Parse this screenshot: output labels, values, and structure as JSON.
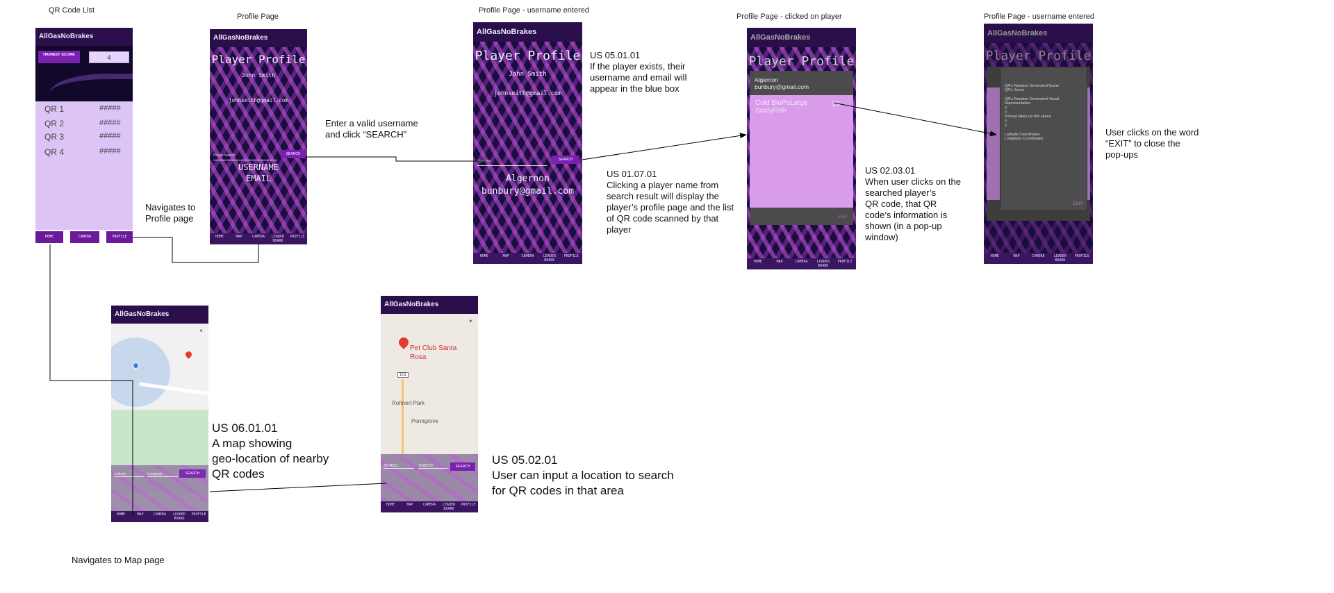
{
  "captions": {
    "qr_list": "QR Code List",
    "profile": "Profile Page",
    "profile_username": "Profile Page - username entered",
    "profile_clicked": "Profile Page - clicked on player",
    "profile_username2": "Profile Page - username entered"
  },
  "app_title": "AllGasNoBrakes",
  "nav": [
    "HOME",
    "MAP",
    "CAMERA",
    "LEADER BOARD",
    "PROFILE"
  ],
  "qr_screen": {
    "highest_score_label": "HIGHEST SCORE",
    "highest_score_value": "4",
    "rows": [
      {
        "name": "QR 1",
        "score": "#####"
      },
      {
        "name": "QR 2",
        "score": "#####"
      },
      {
        "name": "QR 3",
        "score": "#####"
      },
      {
        "name": "QR 4",
        "score": "#####"
      }
    ],
    "buttons": [
      "HOME",
      "CAMERA",
      "PROFILE"
    ]
  },
  "profile_screen": {
    "title": "Player Profile",
    "name": "John Smith",
    "email": "johnsmith@gmail.com",
    "search_placeholder": "Player Search",
    "search_button": "SEARCH",
    "result_line1": "USERNAME",
    "result_line2": "EMAIL"
  },
  "profile_entered": {
    "title": "Player Profile",
    "name": "John Smith",
    "email": "johnsmith@gmail.com",
    "search_value": "algernon",
    "search_button": "SEARCH",
    "result_name": "Algernon",
    "result_email": "bunbury@gmail.com"
  },
  "profile_clicked": {
    "title": "Player Profile",
    "player_name": "Algernon",
    "player_email": "bunbury@gmail.com",
    "qr_name_line1": "Cold BioPoLarge",
    "qr_name_line2": "ScaryFish",
    "qr_score": "33",
    "exit": "EXIT"
  },
  "profile_popup": {
    "title": "Player Profile",
    "lines": [
      "QR's Random Generated Name",
      "QR's Score",
      "",
      "QR's Random Generated Visual",
      "Representation",
      "//",
      "//",
      "//Visual takes up this space",
      "//",
      "//",
      "",
      "Latitude Coordinates",
      "Longitude Coordinates"
    ],
    "exit": "EXIT"
  },
  "map1": {
    "lat_placeholder": "Latitude",
    "lon_placeholder": "Longitude",
    "search_button": "SEARCH"
  },
  "map2": {
    "place_line1": "Pet Club Santa",
    "place_line2": "Rosa",
    "lat_value": "38.24531",
    "lon_value": "72.85772",
    "search_button": "SEARCH",
    "road_label": "101",
    "town1": "Rohnert Park",
    "town2": "Penngrove"
  },
  "annotations": {
    "navigates_profile": "Navigates to\nProfile page",
    "enter_username": "Enter a valid username\nand click “SEARCH”",
    "us_05_01_01": "US 05.01.01\nIf the player exists, their\nusername and email will\nappear in the blue box",
    "us_01_07_01": "US 01.07.01\nClicking a player name from\nsearch result will display the\nplayer’s profile page and the list\nof QR code scanned by that\nplayer",
    "us_02_03_01": "US 02.03.01\nWhen user clicks on the\nsearched player’s\nQR code, that QR\ncode’s information is\nshown (in a pop-up\nwindow)",
    "exit_note": "User clicks on the word\n“EXIT” to close the\npop-ups",
    "us_06_01_01": "US 06.01.01\nA map showing\ngeo-location of nearby\nQR codes",
    "us_05_02_01": "US 05.02.01\nUser can input a location to search\nfor QR codes in that area",
    "navigates_map": "Navigates to Map page"
  },
  "colors": {
    "accent": "#7a1fb0",
    "title_bar": "#2a0f4a",
    "qr_list_bg": "#ddc4f7",
    "popup_pink": "#d99cea"
  }
}
